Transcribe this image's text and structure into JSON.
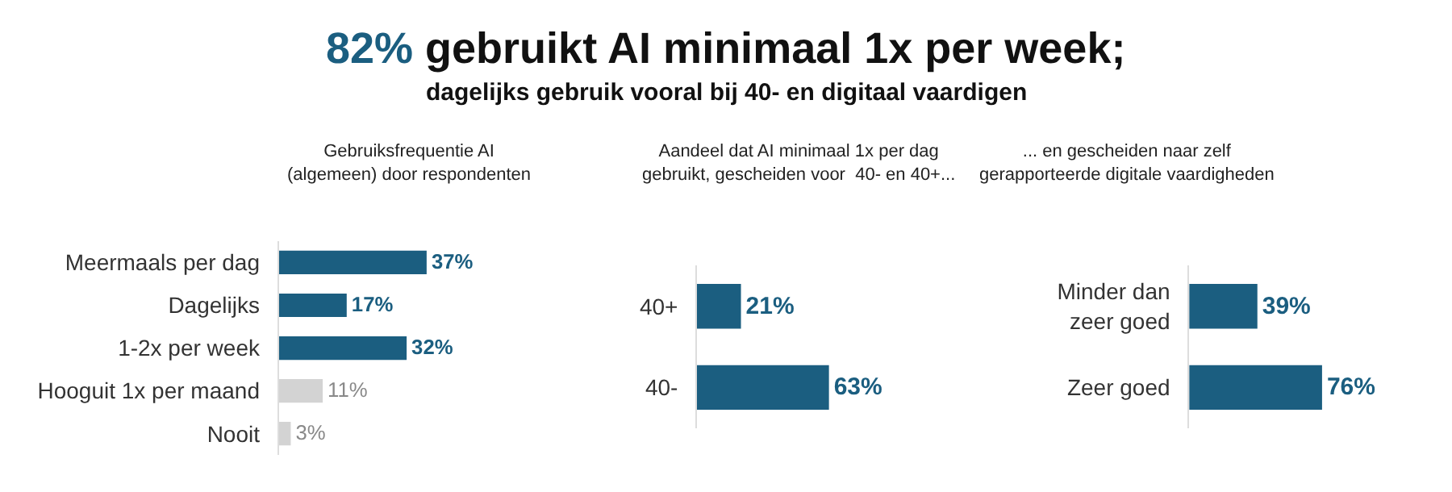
{
  "chart_data": [
    {
      "type": "other",
      "title": "82% gebruikt AI minimaal 1x per week;",
      "subtitle": "dagelijks gebruik vooral bij 40- en digitaal vaardigen",
      "color": "#1b5e80"
    },
    {
      "type": "bar",
      "orientation": "horizontal",
      "title": "Gebruiksfrequentie AI\n(algemeen) door respondenten",
      "categories": [
        "Meermaals per dag",
        "Dagelijks",
        "1-2x per week",
        "Hooguit 1x per maand",
        "Nooit"
      ],
      "values": [
        37,
        17,
        32,
        11,
        3
      ],
      "colors": [
        "#1b5e80",
        "#1b5e80",
        "#1b5e80",
        "#d3d3d3",
        "#d3d3d3"
      ],
      "value_labels": [
        "37%",
        "17%",
        "32%",
        "11%",
        "3%"
      ]
    },
    {
      "type": "bar",
      "orientation": "horizontal",
      "title": "Aandeel dat AI minimaal 1x per dag\ngebruikt, gescheiden voor  40- en 40+...",
      "categories": [
        "40+",
        "40-"
      ],
      "values": [
        21,
        63
      ],
      "colors": [
        "#1b5e80",
        "#1b5e80"
      ],
      "value_labels": [
        "21%",
        "63%"
      ]
    },
    {
      "type": "bar",
      "orientation": "horizontal",
      "title": "... en gescheiden naar zelf\ngerapporteerde digitale vaardigheden",
      "categories": [
        "Minder dan\nzeer goed",
        "Zeer goed"
      ],
      "values": [
        39,
        76
      ],
      "colors": [
        "#1b5e80",
        "#1b5e80"
      ],
      "value_labels": [
        "39%",
        "76%"
      ]
    }
  ]
}
